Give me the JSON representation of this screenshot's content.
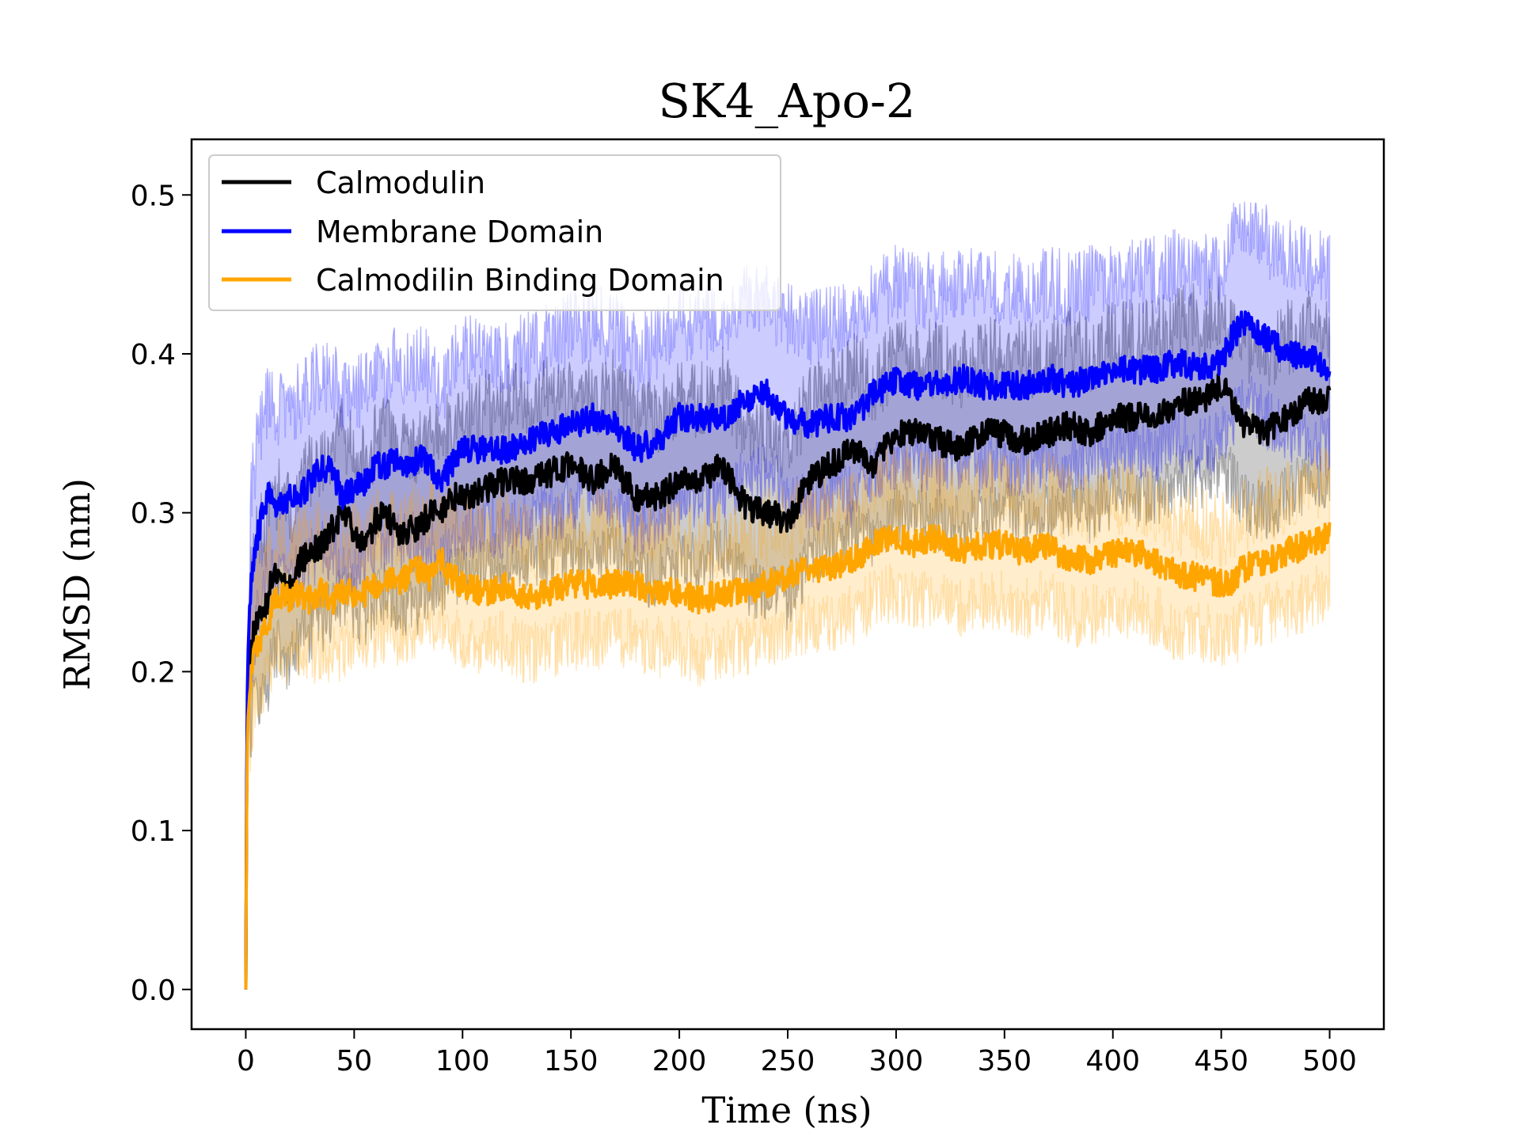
{
  "chart_data": {
    "type": "line",
    "title": "SK4_Apo-2",
    "xlabel": "Time (ns)",
    "ylabel": "RMSD (nm)",
    "xlim": [
      -25,
      525
    ],
    "ylim": [
      -0.025,
      0.535
    ],
    "xticks": [
      0,
      50,
      100,
      150,
      200,
      250,
      300,
      350,
      400,
      450,
      500
    ],
    "xtick_labels": [
      "0",
      "50",
      "100",
      "150",
      "200",
      "250",
      "300",
      "350",
      "400",
      "450",
      "500"
    ],
    "yticks": [
      0.0,
      0.1,
      0.2,
      0.3,
      0.4,
      0.5
    ],
    "ytick_labels": [
      "0.0",
      "0.1",
      "0.2",
      "0.3",
      "0.4",
      "0.5"
    ],
    "grid": false,
    "legend_position": "top-left",
    "series": [
      {
        "name": "Calmodulin",
        "color": "#000000",
        "band_upper_offset": 0.05,
        "band_lower_offset": 0.05,
        "x": [
          0,
          0.5,
          1,
          2,
          4,
          6,
          8,
          10,
          12,
          15,
          20,
          25,
          30,
          35,
          40,
          45,
          50,
          55,
          60,
          65,
          70,
          75,
          80,
          85,
          90,
          95,
          100,
          110,
          120,
          130,
          140,
          150,
          160,
          170,
          180,
          190,
          200,
          210,
          220,
          230,
          240,
          250,
          260,
          270,
          280,
          290,
          300,
          310,
          320,
          330,
          340,
          350,
          360,
          370,
          380,
          390,
          400,
          410,
          420,
          430,
          440,
          450,
          455,
          460,
          470,
          480,
          490,
          500
        ],
        "y": [
          0.0,
          0.15,
          0.19,
          0.21,
          0.23,
          0.235,
          0.24,
          0.24,
          0.26,
          0.265,
          0.25,
          0.27,
          0.275,
          0.28,
          0.29,
          0.3,
          0.29,
          0.28,
          0.295,
          0.3,
          0.285,
          0.29,
          0.29,
          0.3,
          0.3,
          0.31,
          0.31,
          0.315,
          0.32,
          0.32,
          0.325,
          0.33,
          0.32,
          0.33,
          0.31,
          0.31,
          0.32,
          0.32,
          0.33,
          0.305,
          0.3,
          0.295,
          0.32,
          0.33,
          0.34,
          0.33,
          0.35,
          0.35,
          0.345,
          0.34,
          0.35,
          0.35,
          0.345,
          0.35,
          0.355,
          0.35,
          0.36,
          0.36,
          0.36,
          0.37,
          0.37,
          0.38,
          0.37,
          0.355,
          0.35,
          0.36,
          0.37,
          0.37
        ]
      },
      {
        "name": "Membrane Domain",
        "color": "#0000ff",
        "band_upper_offset": 0.06,
        "band_lower_offset": 0.05,
        "x": [
          0,
          0.5,
          1,
          2,
          4,
          6,
          8,
          10,
          12,
          15,
          20,
          25,
          30,
          35,
          40,
          45,
          50,
          55,
          60,
          65,
          70,
          75,
          80,
          85,
          90,
          95,
          100,
          110,
          120,
          130,
          140,
          150,
          160,
          170,
          180,
          190,
          200,
          210,
          220,
          230,
          240,
          250,
          260,
          270,
          280,
          290,
          300,
          310,
          320,
          330,
          340,
          350,
          360,
          370,
          380,
          390,
          400,
          410,
          420,
          430,
          440,
          450,
          455,
          460,
          470,
          480,
          490,
          500
        ],
        "y": [
          0.0,
          0.17,
          0.21,
          0.25,
          0.27,
          0.29,
          0.3,
          0.31,
          0.31,
          0.305,
          0.31,
          0.31,
          0.32,
          0.33,
          0.325,
          0.31,
          0.315,
          0.32,
          0.33,
          0.33,
          0.335,
          0.33,
          0.335,
          0.33,
          0.32,
          0.33,
          0.34,
          0.34,
          0.34,
          0.345,
          0.35,
          0.355,
          0.36,
          0.355,
          0.34,
          0.345,
          0.36,
          0.36,
          0.36,
          0.37,
          0.375,
          0.36,
          0.355,
          0.36,
          0.36,
          0.375,
          0.385,
          0.38,
          0.38,
          0.385,
          0.38,
          0.38,
          0.38,
          0.385,
          0.38,
          0.385,
          0.39,
          0.39,
          0.39,
          0.395,
          0.39,
          0.395,
          0.41,
          0.42,
          0.41,
          0.4,
          0.4,
          0.39
        ]
      },
      {
        "name": "Calmodilin Binding Domain",
        "color": "#ffa500",
        "band_upper_offset": 0.035,
        "band_lower_offset": 0.035,
        "x": [
          0,
          0.5,
          1,
          2,
          4,
          6,
          8,
          10,
          12,
          15,
          20,
          25,
          30,
          35,
          40,
          45,
          50,
          55,
          60,
          65,
          70,
          75,
          80,
          85,
          90,
          95,
          100,
          110,
          120,
          130,
          140,
          150,
          160,
          170,
          180,
          190,
          200,
          210,
          220,
          230,
          240,
          250,
          260,
          270,
          280,
          290,
          300,
          310,
          320,
          330,
          340,
          350,
          360,
          370,
          380,
          390,
          400,
          410,
          420,
          430,
          440,
          450,
          455,
          460,
          470,
          480,
          490,
          500
        ],
        "y": [
          0.0,
          0.14,
          0.17,
          0.19,
          0.21,
          0.22,
          0.225,
          0.23,
          0.24,
          0.25,
          0.245,
          0.25,
          0.245,
          0.25,
          0.245,
          0.25,
          0.25,
          0.25,
          0.255,
          0.26,
          0.255,
          0.26,
          0.265,
          0.26,
          0.27,
          0.26,
          0.255,
          0.25,
          0.255,
          0.245,
          0.25,
          0.255,
          0.255,
          0.255,
          0.255,
          0.25,
          0.25,
          0.245,
          0.25,
          0.25,
          0.255,
          0.26,
          0.265,
          0.265,
          0.27,
          0.28,
          0.285,
          0.28,
          0.285,
          0.275,
          0.28,
          0.28,
          0.275,
          0.28,
          0.27,
          0.27,
          0.275,
          0.275,
          0.27,
          0.26,
          0.26,
          0.255,
          0.255,
          0.265,
          0.27,
          0.275,
          0.28,
          0.285
        ]
      }
    ]
  }
}
